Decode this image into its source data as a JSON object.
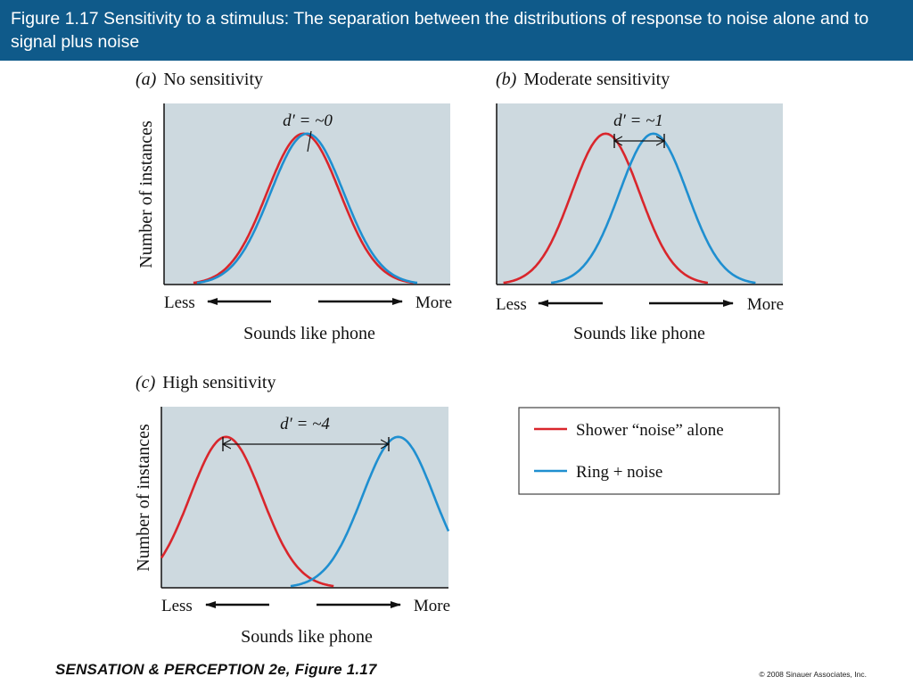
{
  "header": {
    "title": "Figure 1.17  Sensitivity to a stimulus: The separation between the distributions of response to noise alone and to signal plus noise"
  },
  "footer": {
    "source": "SENSATION & PERCEPTION 2e, Figure 1.17",
    "copyright": "© 2008 Sinauer Associates, Inc."
  },
  "colors": {
    "panel_background": "#cdd9df",
    "noise_alone": "#d9262c",
    "ring_plus_noise": "#1f8fd0",
    "header_background": "#0f5a8a"
  },
  "legend": {
    "placement": "right, beside panel (c)",
    "items": [
      {
        "label": "Shower “noise” alone",
        "color": "#d9262c"
      },
      {
        "label": "Ring + noise",
        "color": "#1f8fd0"
      }
    ]
  },
  "chart_data": [
    {
      "type": "line",
      "panel_letter": "a",
      "title": "No sensitivity",
      "annotation": "d′ = ~0",
      "ylabel": "Number of instances",
      "xlabel": "Sounds like phone",
      "x_ends": [
        "Less",
        "More"
      ],
      "xlim": [
        -1.9,
        2.0
      ],
      "ylim": [
        0,
        1.2
      ],
      "series": [
        {
          "name": "Shower “noise” alone",
          "mean": 0,
          "sd": 0.5,
          "x_range": [
            -1.5,
            1.5
          ]
        },
        {
          "name": "Ring + noise",
          "mean": 0.05,
          "sd": 0.5,
          "x_range": [
            -1.45,
            1.55
          ]
        }
      ]
    },
    {
      "type": "line",
      "panel_letter": "b",
      "title": "Moderate sensitivity",
      "annotation": "d′ = ~1",
      "ylabel": "",
      "xlabel": "Sounds like phone",
      "x_ends": [
        "Less",
        "More"
      ],
      "xlim": [
        -1.6,
        2.6
      ],
      "ylim": [
        0,
        1.2
      ],
      "series": [
        {
          "name": "Shower “noise” alone",
          "mean": 0,
          "sd": 0.5,
          "x_range": [
            -1.5,
            1.5
          ]
        },
        {
          "name": "Ring + noise",
          "mean": 0.7,
          "sd": 0.5,
          "x_range": [
            -0.8,
            2.2
          ]
        }
      ]
    },
    {
      "type": "line",
      "panel_letter": "c",
      "title": "High sensitivity",
      "annotation": "d′ = ~4",
      "ylabel": "Number of instances",
      "xlabel": "Sounds like phone",
      "x_ends": [
        "Less",
        "More"
      ],
      "xlim": [
        -0.9,
        3.1
      ],
      "ylim": [
        0,
        1.2
      ],
      "series": [
        {
          "name": "Shower “noise” alone",
          "mean": 0,
          "sd": 0.5,
          "x_range": [
            -0.9,
            1.5
          ]
        },
        {
          "name": "Ring + noise",
          "mean": 2.4,
          "sd": 0.5,
          "x_range": [
            0.9,
            3.1
          ]
        }
      ]
    }
  ]
}
